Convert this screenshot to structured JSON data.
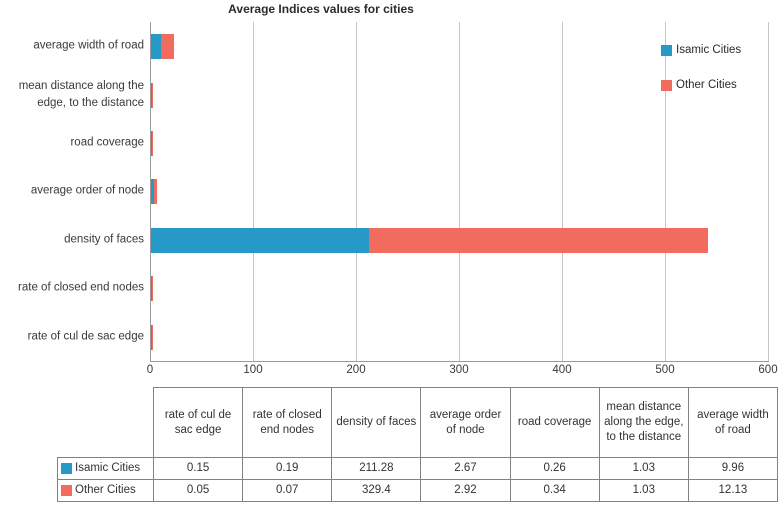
{
  "title": "Average Indices values for cities",
  "chart_data": {
    "type": "bar",
    "orientation": "horizontal",
    "stacked": true,
    "title": "Average Indices values for cities",
    "categories": [
      "average width of road",
      "mean distance along the edge, to the distance",
      "road coverage",
      "average order of node",
      "density of faces",
      "rate of closed end nodes",
      "rate of cul de sac edge"
    ],
    "series": [
      {
        "name": "Isamic Cities",
        "color": "#2799C9",
        "values": [
          9.96,
          1.03,
          0.26,
          2.67,
          211.28,
          0.19,
          0.15
        ]
      },
      {
        "name": "Other Cities",
        "color": "#F26B5F",
        "values": [
          12.13,
          1.03,
          0.34,
          2.92,
          329.4,
          0.07,
          0.05
        ]
      }
    ],
    "xlabel": "",
    "ylabel": "",
    "xlim": [
      0,
      600
    ],
    "x_ticks": [
      "0",
      "100",
      "200",
      "300",
      "400",
      "500",
      "600"
    ],
    "grid": "vertical gridlines at each 100",
    "legend_position": "top-right"
  },
  "table": {
    "headers": [
      "rate of cul de sac edge",
      "rate of closed end nodes",
      "density of faces",
      "average order of node",
      "road coverage",
      "mean distance along the edge, to the distance",
      "average width of road"
    ],
    "rows": [
      {
        "label": "Isamic Cities",
        "values": [
          "0.15",
          "0.19",
          "211.28",
          "2.67",
          "0.26",
          "1.03",
          "9.96"
        ]
      },
      {
        "label": "Other Cities",
        "values": [
          "0.05",
          "0.07",
          "329.4",
          "2.92",
          "0.34",
          "1.03",
          "12.13"
        ]
      }
    ]
  }
}
